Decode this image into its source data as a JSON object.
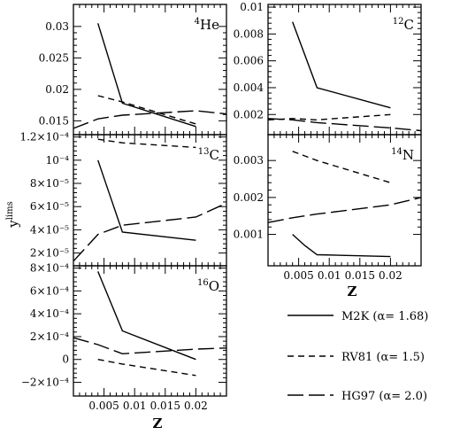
{
  "chart_data": [
    {
      "id": "he4",
      "type": "line",
      "panel_label": {
        "sup": "4",
        "base": "He"
      },
      "xlim": [
        0,
        0.025
      ],
      "ylim": [
        0.0128,
        0.0335
      ],
      "yticks": [
        0.015,
        0.02,
        0.025,
        0.03
      ],
      "ytick_labels": [
        "0.015",
        "0.02",
        "0.025",
        "0.03"
      ],
      "series": [
        {
          "name": "M2K",
          "x": [
            0.004,
            0.008,
            0.02
          ],
          "y": [
            0.0305,
            0.0178,
            0.0141
          ]
        },
        {
          "name": "RV81",
          "x": [
            0.004,
            0.008,
            0.02
          ],
          "y": [
            0.019,
            0.018,
            0.0145
          ]
        },
        {
          "name": "HG97",
          "x": [
            0.0,
            0.004,
            0.008,
            0.02,
            0.025
          ],
          "y": [
            0.0138,
            0.0153,
            0.0159,
            0.0166,
            0.0161
          ]
        }
      ]
    },
    {
      "id": "c12",
      "type": "line",
      "panel_label": {
        "sup": "12",
        "base": "C"
      },
      "xlim": [
        0,
        0.025
      ],
      "ylim": [
        0.0005,
        0.0102
      ],
      "yticks": [
        0.002,
        0.004,
        0.006,
        0.008,
        0.01
      ],
      "ytick_labels": [
        "0.002",
        "0.004",
        "0.006",
        "0.008",
        "0.01"
      ],
      "series": [
        {
          "name": "M2K",
          "x": [
            0.004,
            0.008,
            0.02
          ],
          "y": [
            0.0089,
            0.004,
            0.0025
          ]
        },
        {
          "name": "RV81",
          "x": [
            0.0,
            0.004,
            0.008,
            0.02
          ],
          "y": [
            0.0016,
            0.0017,
            0.0016,
            0.002
          ]
        },
        {
          "name": "HG97",
          "x": [
            0.0,
            0.004,
            0.008,
            0.02,
            0.025
          ],
          "y": [
            0.0017,
            0.0016,
            0.0014,
            0.001,
            0.0008
          ]
        }
      ]
    },
    {
      "id": "c13",
      "type": "line",
      "panel_label": {
        "sup": "13",
        "base": "C"
      },
      "xlim": [
        0,
        0.025
      ],
      "ylim": [
        9e-06,
        0.000122
      ],
      "yticks": [
        2e-05,
        4e-05,
        6e-05,
        8e-05,
        0.0001,
        0.00012
      ],
      "ytick_labels": [
        "2×10⁻⁵",
        "4×10⁻⁵",
        "6×10⁻⁵",
        "8×10⁻⁵",
        "10⁻⁴",
        "1.2×10⁻⁴"
      ],
      "series": [
        {
          "name": "M2K",
          "x": [
            0.004,
            0.008,
            0.02
          ],
          "y": [
            0.0001,
            3.8e-05,
            3.1e-05
          ]
        },
        {
          "name": "RV81",
          "x": [
            0.004,
            0.008,
            0.02
          ],
          "y": [
            0.000118,
            0.000115,
            0.000111
          ]
        },
        {
          "name": "HG97",
          "x": [
            0.0,
            0.004,
            0.008,
            0.02,
            0.025
          ],
          "y": [
            1.3e-05,
            3.6e-05,
            4.4e-05,
            5.1e-05,
            6.3e-05
          ]
        }
      ]
    },
    {
      "id": "n14",
      "type": "line",
      "panel_label": {
        "sup": "14",
        "base": "N"
      },
      "xlim": [
        0,
        0.025
      ],
      "ylim": [
        0.00015,
        0.0037
      ],
      "yticks": [
        0.001,
        0.002,
        0.003
      ],
      "ytick_labels": [
        "0.001",
        "0.002",
        "0.003"
      ],
      "series": [
        {
          "name": "M2K",
          "x": [
            0.004,
            0.006,
            0.008,
            0.02
          ],
          "y": [
            0.001,
            0.0007,
            0.00045,
            0.0004
          ]
        },
        {
          "name": "RV81",
          "x": [
            0.004,
            0.008,
            0.02
          ],
          "y": [
            0.00325,
            0.003,
            0.0024
          ]
        },
        {
          "name": "HG97",
          "x": [
            0.0,
            0.004,
            0.008,
            0.02,
            0.025
          ],
          "y": [
            0.00132,
            0.00145,
            0.00155,
            0.0018,
            0.002
          ]
        }
      ]
    },
    {
      "id": "o16",
      "type": "line",
      "panel_label": {
        "sup": "16",
        "base": "O"
      },
      "xlim": [
        0,
        0.025
      ],
      "ylim": [
        -0.00032,
        0.00082
      ],
      "yticks": [
        -0.0002,
        0,
        0.0002,
        0.0004,
        0.0006,
        0.0008
      ],
      "ytick_labels": [
        "−2×10⁻⁴",
        "0",
        "2×10⁻⁴",
        "4×10⁻⁴",
        "6×10⁻⁴",
        "8×10⁻⁴"
      ],
      "series": [
        {
          "name": "M2K",
          "x": [
            0.004,
            0.008,
            0.02
          ],
          "y": [
            0.00077,
            0.00025,
            0.0
          ]
        },
        {
          "name": "RV81",
          "x": [
            0.004,
            0.008,
            0.02
          ],
          "y": [
            0.0,
            -4e-05,
            -0.00014
          ]
        },
        {
          "name": "HG97",
          "x": [
            0.0,
            0.004,
            0.008,
            0.02,
            0.025
          ],
          "y": [
            0.00019,
            0.00013,
            5e-05,
            9e-05,
            0.0001
          ]
        }
      ]
    }
  ],
  "xticks": [
    0.005,
    0.01,
    0.015,
    0.02
  ],
  "xtick_labels": [
    "0.005",
    "0.01",
    "0.015",
    "0.02"
  ],
  "xlabel": "Z",
  "ylabel": {
    "base": "y",
    "sup": "lims"
  },
  "legend": [
    {
      "series": "M2K",
      "label": "M2K  (α= 1.68)",
      "style": "solid"
    },
    {
      "series": "RV81",
      "label": "RV81  (α= 1.5)",
      "style": "short-dash"
    },
    {
      "series": "HG97",
      "label": "HG97  (α= 2.0)",
      "style": "long-dash"
    }
  ]
}
